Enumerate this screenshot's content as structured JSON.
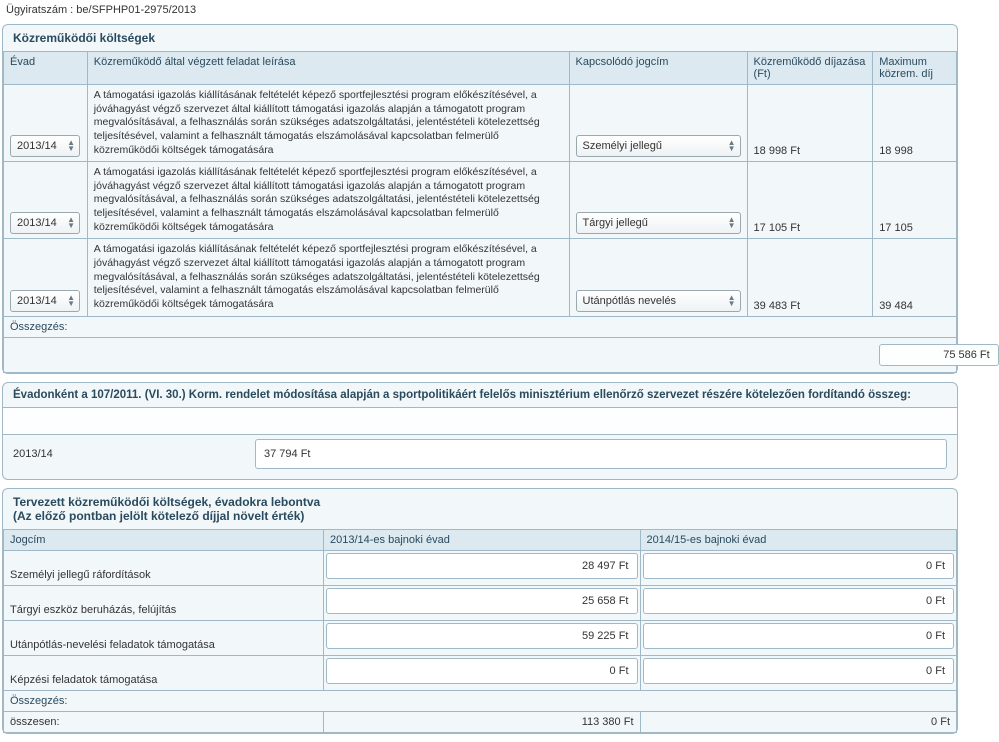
{
  "case_number": "Ügyiratszám : be/SFPHP01-2975/2013",
  "section1": {
    "title": "Közreműködői költségek",
    "headers": {
      "evad": "Évad",
      "desc": "Közreműködő által végzett feladat leírása",
      "jogcim": "Kapcsolódó jogcím",
      "fee": "Közreműködő díjazása (Ft)",
      "max": "Maximum közrem. díj"
    },
    "rows": [
      {
        "season": "2013/14",
        "desc": "A támogatási igazolás kiállításának feltételét képező sportfejlesztési program előkészítésével, a jóváhagyást végző szervezet által kiállított támogatási igazolás alapján a támogatott program megvalósításával, a felhasználás során szükséges adatszolgáltatási, jelentéstételi kötelezettség teljesítésével, valamint a felhasznált támogatás elszámolásával kapcsolatban felmerülő közreműködői költségek támogatására",
        "jogcim": "Személyi jellegű",
        "fee": "18 998 Ft",
        "max": "18 998"
      },
      {
        "season": "2013/14",
        "desc": "A támogatási igazolás kiállításának feltételét képező sportfejlesztési program előkészítésével, a jóváhagyást végző szervezet által kiállított támogatási igazolás alapján a támogatott program megvalósításával, a felhasználás során szükséges adatszolgáltatási, jelentéstételi kötelezettség teljesítésével, valamint a felhasznált támogatás elszámolásával kapcsolatban felmerülő közreműködői költségek támogatására",
        "jogcim": "Tárgyi jellegű",
        "fee": "17 105 Ft",
        "max": "17 105"
      },
      {
        "season": "2013/14",
        "desc": "A támogatási igazolás kiállításának feltételét képező sportfejlesztési program előkészítésével, a jóváhagyást végző szervezet által kiállított támogatási igazolás alapján a támogatott program megvalósításával, a felhasználás során szükséges adatszolgáltatási, jelentéstételi kötelezettség teljesítésével, valamint a felhasznált támogatás elszámolásával kapcsolatban felmerülő közreműködői költségek támogatására",
        "jogcim": "Utánpótlás nevelés",
        "fee": "39 483 Ft",
        "max": "39 484"
      }
    ],
    "sum_label": "Összegzés:",
    "sum_value": "75 586 Ft"
  },
  "section2": {
    "title": "Évadonként a 107/2011. (VI. 30.) Korm. rendelet módosítása alapján a sportpolitikáért felelős minisztérium ellenőrző szervezet részére kötelezően fordítandó összeg:",
    "year": "2013/14",
    "value": "37 794 Ft"
  },
  "section3": {
    "title": "Tervezett közreműködői költségek, évadokra lebontva\n(Az előző pontban jelölt kötelező díjjal növelt érték)",
    "headers": {
      "jogcim": "Jogcím",
      "y1": "2013/14-es bajnoki évad",
      "y2": "2014/15-es bajnoki évad"
    },
    "rows": [
      {
        "label": "Személyi jellegű ráfordítások",
        "y1": "28 497 Ft",
        "y2": "0 Ft"
      },
      {
        "label": "Tárgyi eszköz beruházás, felújítás",
        "y1": "25 658 Ft",
        "y2": "0 Ft"
      },
      {
        "label": "Utánpótlás-nevelési feladatok támogatása",
        "y1": "59 225 Ft",
        "y2": "0 Ft"
      },
      {
        "label": "Képzési feladatok támogatása",
        "y1": "0 Ft",
        "y2": "0 Ft"
      }
    ],
    "sum_label": "Összegzés:",
    "total_label": "összesen:",
    "total_y1": "113 380 Ft",
    "total_y2": "0 Ft"
  },
  "colors": {
    "panel_border": "#a0b9c8",
    "panel_bg": "#f2f7fa",
    "header_bg": "#dce9f0",
    "text_heading": "#2a4a5d"
  }
}
